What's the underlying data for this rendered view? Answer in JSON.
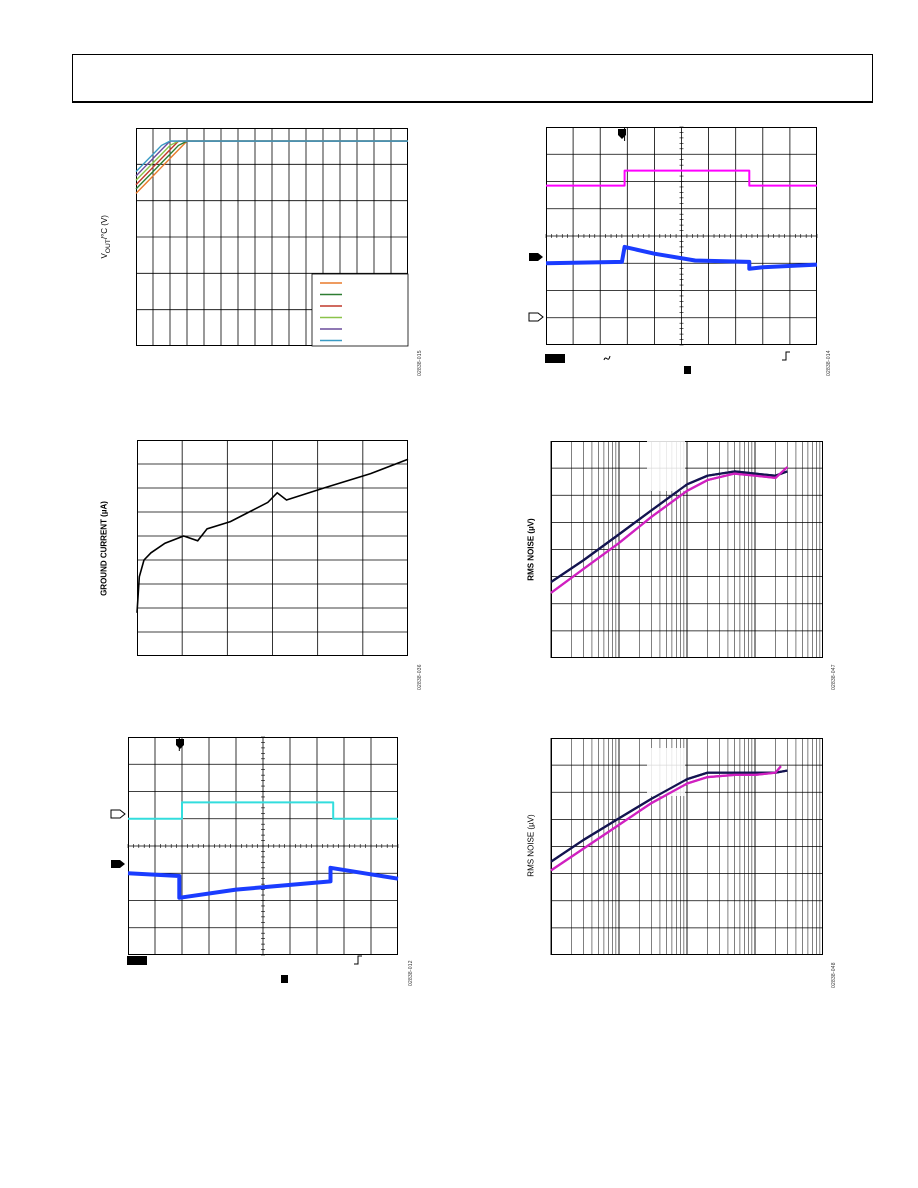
{
  "chart_data": [
    {
      "type": "line",
      "ylabel": "VOUT (V)",
      "ylabel_parts": {
        "v": "V",
        "sub": "OUT",
        "rest": "/°C (V)"
      },
      "figure_id": "02838-015",
      "grid": true,
      "legend_placement": "bottom-right",
      "x": [
        0,
        0.5,
        1.0,
        1.5,
        2.0,
        2.5,
        3.0,
        16
      ],
      "series": [
        {
          "color": "#e87a2b",
          "values": [
            0.7,
            0.74,
            0.78,
            0.82,
            0.86,
            0.9,
            0.94,
            0.94
          ]
        },
        {
          "color": "#2e7d32",
          "values": [
            0.72,
            0.76,
            0.8,
            0.84,
            0.88,
            0.92,
            0.94,
            0.94
          ]
        },
        {
          "color": "#c0392b",
          "values": [
            0.74,
            0.78,
            0.82,
            0.86,
            0.9,
            0.94,
            0.94,
            0.94
          ]
        },
        {
          "color": "#8bc34a",
          "values": [
            0.76,
            0.8,
            0.84,
            0.88,
            0.92,
            0.94,
            0.94,
            0.94
          ]
        },
        {
          "color": "#6a4c9c",
          "values": [
            0.78,
            0.82,
            0.86,
            0.9,
            0.94,
            0.94,
            0.94,
            0.94
          ]
        },
        {
          "color": "#3a9bc4",
          "values": [
            0.8,
            0.84,
            0.88,
            0.92,
            0.94,
            0.94,
            0.94,
            0.94
          ]
        }
      ],
      "xlim": [
        0,
        16
      ],
      "ylim": [
        0,
        1
      ]
    },
    {
      "type": "line",
      "ylabel": "GROUND CURRENT (µA)",
      "figure_id": "02838-036",
      "grid": true,
      "x": [
        0,
        0.05,
        0.15,
        0.3,
        0.6,
        1.0,
        1.3,
        1.5,
        2.0,
        2.4,
        2.8,
        3.0,
        3.2,
        4.0,
        5.0,
        5.8
      ],
      "values": [
        0.18,
        0.33,
        0.4,
        0.43,
        0.47,
        0.5,
        0.48,
        0.53,
        0.56,
        0.6,
        0.64,
        0.68,
        0.65,
        0.7,
        0.76,
        0.82
      ],
      "xlim": [
        0,
        5.8
      ],
      "ylim": [
        0,
        0.9
      ]
    },
    {
      "type": "line",
      "ylabel": "RMS NOISE (µV)",
      "figure_id": "02838-047",
      "grid": true,
      "log_x": true,
      "series": [
        {
          "color": "#141450",
          "x": [
            0.001,
            0.003,
            0.01,
            0.03,
            0.1,
            0.2,
            0.5,
            1,
            2,
            3
          ],
          "values": [
            0.35,
            0.45,
            0.57,
            0.68,
            0.8,
            0.84,
            0.86,
            0.85,
            0.84,
            0.86
          ]
        },
        {
          "color": "#d020c0",
          "x": [
            0.001,
            0.003,
            0.01,
            0.03,
            0.1,
            0.2,
            0.5,
            1,
            2,
            3
          ],
          "values": [
            0.3,
            0.41,
            0.53,
            0.65,
            0.77,
            0.82,
            0.85,
            0.84,
            0.83,
            0.88
          ]
        }
      ],
      "xlim": [
        0.001,
        10
      ],
      "ylim": [
        0,
        1
      ]
    },
    {
      "type": "line",
      "ylabel": "RMS NOISE (µV)",
      "figure_id": "02838-048",
      "grid": true,
      "log_x": true,
      "series": [
        {
          "color": "#141450",
          "x": [
            0.001,
            0.003,
            0.01,
            0.03,
            0.1,
            0.2,
            0.5,
            1,
            2,
            3
          ],
          "values": [
            0.43,
            0.53,
            0.63,
            0.72,
            0.81,
            0.84,
            0.84,
            0.84,
            0.84,
            0.85
          ]
        },
        {
          "color": "#d020c0",
          "x": [
            0.001,
            0.003,
            0.01,
            0.03,
            0.1,
            0.2,
            0.5,
            1,
            2,
            2.4
          ],
          "values": [
            0.39,
            0.49,
            0.6,
            0.7,
            0.79,
            0.82,
            0.83,
            0.83,
            0.84,
            0.87
          ]
        }
      ],
      "xlim": [
        0.001,
        10
      ],
      "ylim": [
        0,
        1
      ]
    },
    {
      "type": "line",
      "figure_id": "02838-014",
      "grid": true,
      "series": [
        {
          "color": "#ff00ff",
          "x": [
            0,
            2.9,
            2.9,
            7.5,
            7.5,
            10
          ],
          "values": [
            5.85,
            5.85,
            6.4,
            6.4,
            5.85,
            5.85
          ]
        },
        {
          "color": "#1a3cff",
          "x": [
            0,
            2.8,
            2.9,
            4.0,
            5.5,
            7.5,
            7.5,
            8.0,
            10
          ],
          "values": [
            3.0,
            3.05,
            3.6,
            3.35,
            3.1,
            3.05,
            2.8,
            2.85,
            2.95
          ]
        }
      ],
      "xlim": [
        0,
        10
      ],
      "ylim": [
        0,
        8
      ]
    },
    {
      "type": "line",
      "figure_id": "02838-012",
      "grid": true,
      "series": [
        {
          "color": "#33dddd",
          "x": [
            0,
            2.0,
            2.0,
            7.6,
            7.6,
            10
          ],
          "values": [
            5.0,
            5.0,
            5.6,
            5.6,
            5.0,
            5.0
          ]
        },
        {
          "color": "#1a3cff",
          "x": [
            0,
            1.9,
            1.9,
            4.0,
            7.5,
            7.5,
            10
          ],
          "values": [
            3.0,
            2.9,
            2.1,
            2.4,
            2.7,
            3.2,
            2.8
          ]
        }
      ],
      "xlim": [
        0,
        10
      ],
      "ylim": [
        0,
        8
      ]
    }
  ]
}
